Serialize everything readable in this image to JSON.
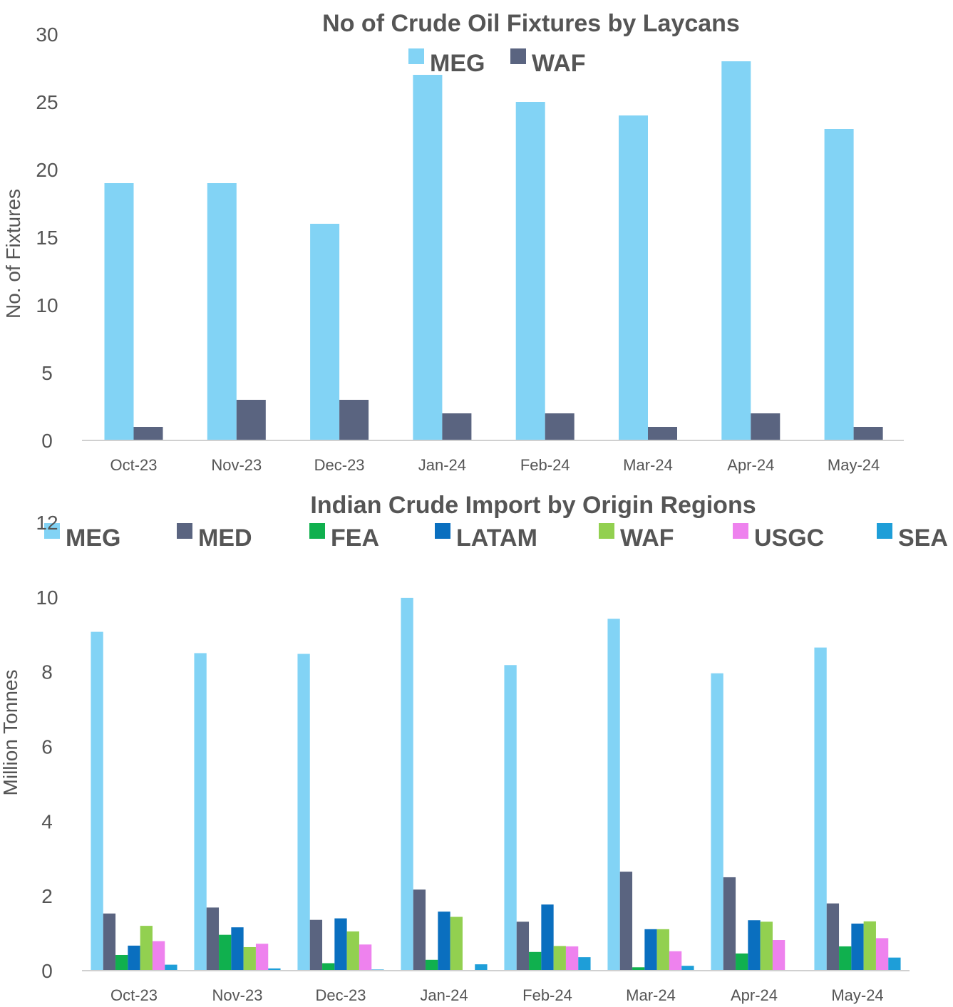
{
  "chart_data": [
    {
      "type": "bar",
      "title": "No of Crude Oil Fixtures by Laycans",
      "ylabel": "No. of Fixtures",
      "xlabel": "",
      "ylim": [
        0,
        30
      ],
      "yticks": [
        0,
        5,
        10,
        15,
        20,
        25,
        30
      ],
      "grid": false,
      "legend_position": "top",
      "categories": [
        "Oct-23",
        "Nov-23",
        "Dec-23",
        "Jan-24",
        "Feb-24",
        "Mar-24",
        "Apr-24",
        "May-24"
      ],
      "series": [
        {
          "name": "MEG",
          "color": "#82D3F5",
          "values": [
            19,
            19,
            16,
            27,
            25,
            24,
            28,
            23
          ]
        },
        {
          "name": "WAF",
          "color": "#5A6480",
          "values": [
            1,
            3,
            3,
            2,
            2,
            1,
            2,
            1
          ]
        }
      ]
    },
    {
      "type": "bar",
      "title": "Indian Crude Import by Origin Regions",
      "ylabel": "Million Tonnes",
      "xlabel": "",
      "ylim": [
        0,
        12
      ],
      "yticks": [
        0,
        2,
        4,
        6,
        8,
        10,
        12
      ],
      "grid": false,
      "legend_position": "top",
      "categories": [
        "Oct-23",
        "Nov-23",
        "Dec-23",
        "Jan-24",
        "Feb-24",
        "Mar-24",
        "Apr-24",
        "May-24"
      ],
      "series": [
        {
          "name": "MEG",
          "color": "#82D3F5",
          "values": [
            9.07,
            8.5,
            8.48,
            9.98,
            8.18,
            9.42,
            7.96,
            8.65
          ]
        },
        {
          "name": "MED",
          "color": "#5A6480",
          "values": [
            1.53,
            1.69,
            1.36,
            2.17,
            1.31,
            2.65,
            2.5,
            1.8
          ]
        },
        {
          "name": "FEA",
          "color": "#10B04E",
          "values": [
            0.42,
            0.96,
            0.2,
            0.29,
            0.5,
            0.09,
            0.46,
            0.65
          ]
        },
        {
          "name": "LATAM",
          "color": "#0A6FBF",
          "values": [
            0.67,
            1.16,
            1.4,
            1.58,
            1.77,
            1.11,
            1.35,
            1.26
          ]
        },
        {
          "name": "WAF",
          "color": "#92D050",
          "values": [
            1.2,
            0.63,
            1.05,
            1.44,
            0.66,
            1.11,
            1.31,
            1.32
          ]
        },
        {
          "name": "USGC",
          "color": "#EE82EE",
          "values": [
            0.79,
            0.72,
            0.7,
            0.0,
            0.65,
            0.52,
            0.82,
            0.87
          ]
        },
        {
          "name": "SEA",
          "color": "#1E9ED8",
          "values": [
            0.16,
            0.06,
            0.03,
            0.17,
            0.36,
            0.13,
            0.0,
            0.35
          ]
        }
      ]
    }
  ]
}
